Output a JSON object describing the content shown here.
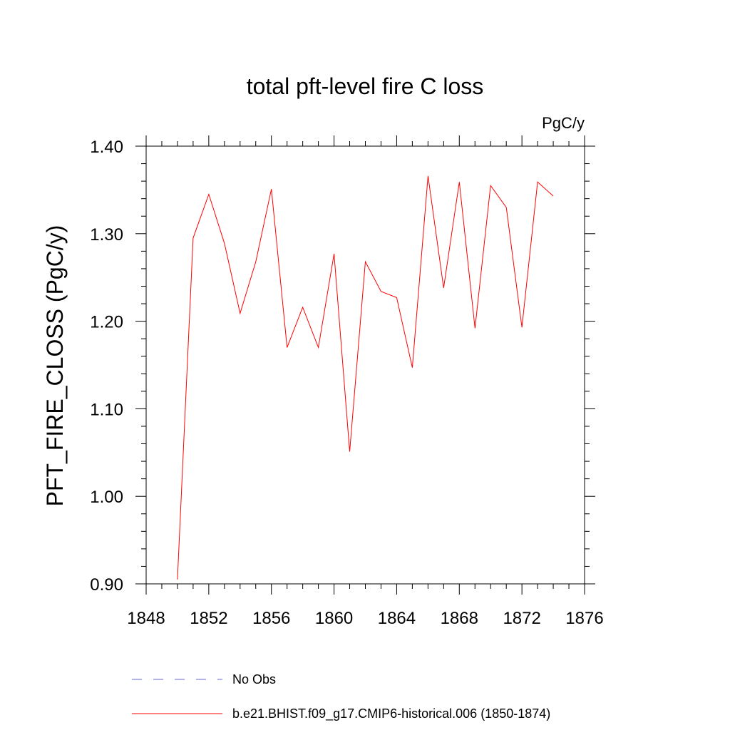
{
  "chart_data": {
    "type": "line",
    "title": "total pft-level fire C loss",
    "units_label": "PgC/y",
    "ylabel": "PFT_FIRE_CLOSS  (PgC/y)",
    "xlabel": "",
    "xlim": [
      1848,
      1876
    ],
    "ylim": [
      0.9,
      1.4
    ],
    "x_ticks": [
      1848,
      1852,
      1856,
      1860,
      1864,
      1868,
      1872,
      1876
    ],
    "y_ticks": [
      0.9,
      1.0,
      1.1,
      1.2,
      1.3,
      1.4
    ],
    "y_tick_labels": [
      "0.90",
      "1.00",
      "1.10",
      "1.20",
      "1.30",
      "1.40"
    ],
    "x_minor_step": 1,
    "y_minor_step": 0.02,
    "grid": false,
    "legend_position": "bottom",
    "series": [
      {
        "name": "b.e21.BHIST.f09_g17.CMIP6-historical.006 (1850-1874)",
        "color": "#ff0000",
        "style": "solid",
        "x": [
          1850,
          1851,
          1852,
          1853,
          1854,
          1855,
          1856,
          1857,
          1858,
          1859,
          1860,
          1861,
          1862,
          1863,
          1864,
          1865,
          1866,
          1867,
          1868,
          1869,
          1870,
          1871,
          1872,
          1873,
          1874
        ],
        "values": [
          0.905,
          1.295,
          1.345,
          1.289,
          1.209,
          1.268,
          1.351,
          1.17,
          1.216,
          1.17,
          1.277,
          1.051,
          1.268,
          1.234,
          1.227,
          1.147,
          1.366,
          1.238,
          1.359,
          1.192,
          1.355,
          1.33,
          1.193,
          1.359,
          1.343
        ]
      }
    ],
    "legend": [
      {
        "label": "No Obs",
        "color": "#6666cc",
        "style": "dashed"
      },
      {
        "label": "b.e21.BHIST.f09_g17.CMIP6-historical.006 (1850-1874)",
        "color": "#ff0000",
        "style": "solid"
      }
    ]
  }
}
